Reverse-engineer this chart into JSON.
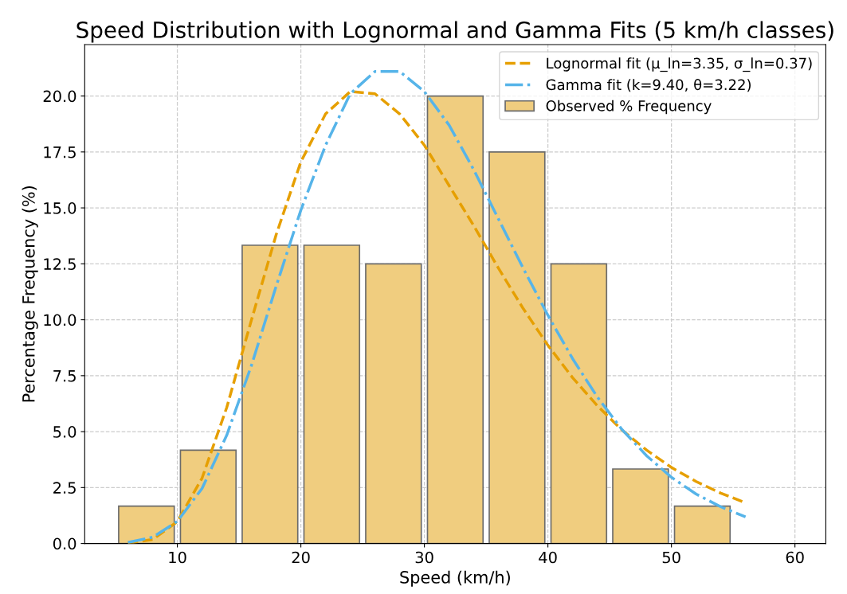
{
  "chart_data": {
    "type": "histogram",
    "title": "Speed Distribution with Lognormal and Gamma Fits (5 km/h classes)",
    "xlabel": "Speed (km/h)",
    "ylabel": "Percentage Frequency (%)",
    "xlim": [
      2.5,
      62.5
    ],
    "ylim": [
      0,
      22.3
    ],
    "xticks": [
      10,
      20,
      30,
      40,
      50,
      60
    ],
    "yticks": [
      {
        "value": 0,
        "label": "0.0"
      },
      {
        "value": 2.5,
        "label": "2.5"
      },
      {
        "value": 5,
        "label": "5.0"
      },
      {
        "value": 7.5,
        "label": "7.5"
      },
      {
        "value": 10,
        "label": "10.0"
      },
      {
        "value": 12.5,
        "label": "12.5"
      },
      {
        "value": 15,
        "label": "15.0"
      },
      {
        "value": 17.5,
        "label": "17.5"
      },
      {
        "value": 20,
        "label": "20.0"
      }
    ],
    "grid": true,
    "legend": "top right",
    "series": [
      {
        "type": "line",
        "name": "Lognormal fit (μ_ln=3.35, σ_ln=0.37)",
        "color": "#e69f00",
        "line_style": "dashed",
        "x": [
          6,
          8,
          10,
          12,
          14,
          16,
          18,
          20,
          22,
          24,
          26,
          28,
          30,
          32,
          34,
          36,
          38,
          40,
          42,
          44,
          46,
          48,
          50,
          52,
          54,
          56
        ],
        "values": [
          0.01,
          0.18,
          0.98,
          2.92,
          6.08,
          9.99,
          13.8,
          17.06,
          19.2,
          20.2,
          20.1,
          19.2,
          17.8,
          16.0,
          14.2,
          12.3,
          10.5,
          8.86,
          7.41,
          6.16,
          5.07,
          4.17,
          3.4,
          2.77,
          2.25,
          1.82
        ]
      },
      {
        "type": "line",
        "name": "Gamma fit (k=9.40, θ=3.22)",
        "color": "#56b4e9",
        "line_style": "dashdot",
        "x": [
          6,
          8,
          10,
          12,
          14,
          16,
          18,
          20,
          22,
          24,
          26,
          28,
          30,
          32,
          34,
          36,
          38,
          40,
          42,
          44,
          46,
          48,
          50,
          52,
          54,
          56
        ],
        "values": [
          0.05,
          0.28,
          0.99,
          2.46,
          4.84,
          7.96,
          11.5,
          14.9,
          17.8,
          20.1,
          21.1,
          21.1,
          20.2,
          18.7,
          16.7,
          14.5,
          12.3,
          10.2,
          8.26,
          6.55,
          5.09,
          3.92,
          2.96,
          2.21,
          1.64,
          1.19
        ]
      },
      {
        "name": "Observed % Frequency",
        "color": "#f0cd7f",
        "bins": [
          5,
          10,
          15,
          20,
          25,
          30,
          35,
          40,
          45,
          50,
          55
        ],
        "values": [
          1.67,
          4.17,
          13.33,
          13.33,
          12.5,
          20.0,
          17.5,
          12.5,
          3.33,
          1.67
        ]
      }
    ]
  }
}
